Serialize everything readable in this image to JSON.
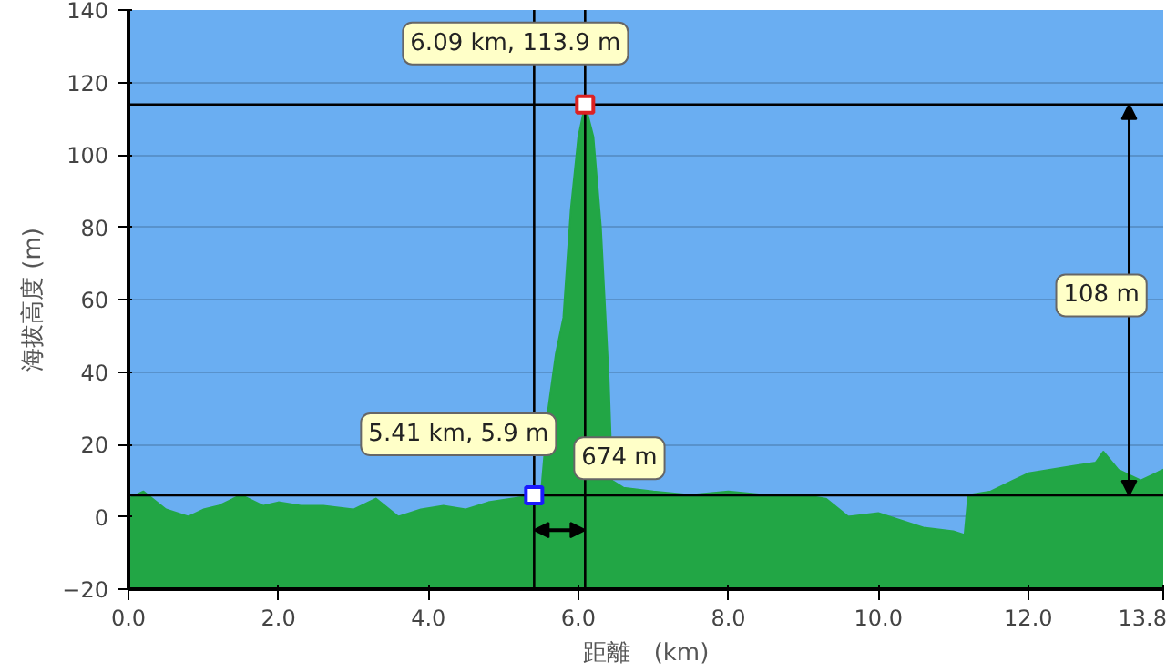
{
  "chart_data": {
    "type": "area",
    "xlabel": "距離　(km)",
    "ylabel": "海拔高度 (m)",
    "xlim": [
      0,
      13.8
    ],
    "ylim": [
      -20,
      140
    ],
    "xticks": [
      {
        "value": 0,
        "label": "0.0"
      },
      {
        "value": 2,
        "label": "2.0"
      },
      {
        "value": 4,
        "label": "4.0"
      },
      {
        "value": 6,
        "label": "6.0"
      },
      {
        "value": 8,
        "label": "8.0"
      },
      {
        "value": 10,
        "label": "10.0"
      },
      {
        "value": 12,
        "label": "12.0"
      },
      {
        "value": 13.8,
        "label": "13.8"
      }
    ],
    "yticks": [
      -20,
      0,
      20,
      40,
      60,
      80,
      100,
      120,
      140
    ],
    "grid": "y",
    "series": [
      {
        "color": "#22a645",
        "x": [
          0,
          0.2,
          0.5,
          0.8,
          1.0,
          1.2,
          1.5,
          1.8,
          2.0,
          2.3,
          2.6,
          3.0,
          3.3,
          3.6,
          3.9,
          4.2,
          4.5,
          4.8,
          5.1,
          5.41,
          5.5,
          5.6,
          5.7,
          5.8,
          5.9,
          6.0,
          6.09,
          6.2,
          6.3,
          6.4,
          6.45,
          6.6,
          7.0,
          7.5,
          8.0,
          8.5,
          9.0,
          9.3,
          9.6,
          10.0,
          10.3,
          10.6,
          11.0,
          11.15,
          11.2,
          11.5,
          11.8,
          12.0,
          12.3,
          12.6,
          12.9,
          13.0,
          13.2,
          13.5,
          13.8
        ],
        "values": [
          5,
          7,
          2,
          0,
          2,
          3,
          6,
          3,
          4,
          3,
          3,
          2,
          5,
          0,
          2,
          3,
          2,
          4,
          5,
          5.9,
          6,
          30,
          45,
          55,
          85,
          105,
          113.9,
          105,
          80,
          40,
          10,
          8,
          7,
          6,
          7,
          6,
          6,
          5,
          0,
          1,
          -1,
          -3,
          -4,
          -5,
          6,
          7,
          10,
          12,
          13,
          14,
          15,
          18,
          13,
          10,
          13
        ]
      },
      {
        "type": "scatter",
        "marker": "square",
        "colors": [
          "#1a1aff",
          "#dd2222"
        ],
        "x": [
          5.41,
          6.09
        ],
        "values": [
          5.9,
          113.9
        ]
      }
    ],
    "ref_lines": [
      {
        "axis": "x",
        "value": 5.41,
        "color": "#000000"
      },
      {
        "axis": "x",
        "value": 6.09,
        "color": "#000000"
      },
      {
        "axis": "y",
        "value": 5.9,
        "color": "#000000"
      },
      {
        "axis": "y",
        "value": 113.9,
        "color": "#000000"
      }
    ],
    "annotations": [
      {
        "text": "6.09 km, 113.9 m",
        "x": 6.09,
        "y": 113.9
      },
      {
        "text": "5.41 km, 5.9 m",
        "x": 5.41,
        "y": 5.9
      },
      "674 m",
      "108 m"
    ]
  }
}
